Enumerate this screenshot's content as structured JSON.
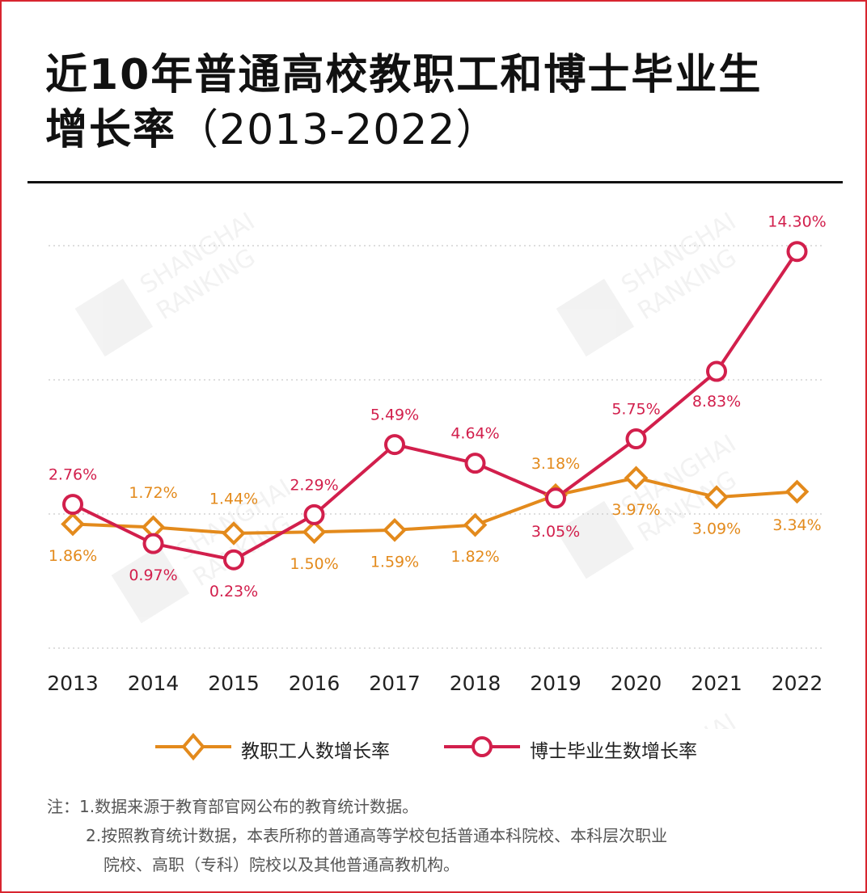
{
  "title": {
    "line1": "近10年普通高校教职工和博士毕业生",
    "line2_main": "增长率",
    "line2_sub": "（2013-2022）"
  },
  "colors": {
    "frame": "#d8252f",
    "teachers": "#e38a1c",
    "phd": "#d21f4c",
    "teachers_label": "#e38a1c",
    "phd_label": "#d21f4c"
  },
  "chart_data": {
    "type": "line",
    "categories": [
      "2013",
      "2014",
      "2015",
      "2016",
      "2017",
      "2018",
      "2019",
      "2020",
      "2021",
      "2022"
    ],
    "series": [
      {
        "name": "教职工人数增长率",
        "marker": "diamond",
        "values": [
          1.86,
          1.72,
          1.44,
          1.5,
          1.59,
          1.82,
          3.18,
          3.97,
          3.09,
          3.34
        ],
        "labels": [
          "1.86%",
          "1.72%",
          "1.44%",
          "1.50%",
          "1.59%",
          "1.82%",
          "3.18%",
          "3.97%",
          "3.09%",
          "3.34%"
        ]
      },
      {
        "name": "博士毕业生数增长率",
        "marker": "circle",
        "values": [
          2.76,
          0.97,
          0.23,
          2.29,
          5.49,
          4.64,
          3.05,
          5.75,
          8.83,
          14.3
        ],
        "labels": [
          "2.76%",
          "0.97%",
          "0.23%",
          "2.29%",
          "5.49%",
          "4.64%",
          "3.05%",
          "5.75%",
          "8.83%",
          "14.30%"
        ]
      }
    ],
    "ylim": [
      -3.8,
      16.3
    ],
    "grid": "horizontal dotted",
    "legend": "bottom-center"
  },
  "watermark": {
    "line1": "SHANGHAI",
    "line2": "RANKING"
  },
  "notes": {
    "line1": "注：1.数据来源于教育部官网公布的教育统计数据。",
    "line2": "2.按照教育统计数据，本表所称的普通高等学校包括普通本科院校、本科层次职业",
    "line3": "院校、高职（专科）院校以及其他普通高教机构。"
  }
}
